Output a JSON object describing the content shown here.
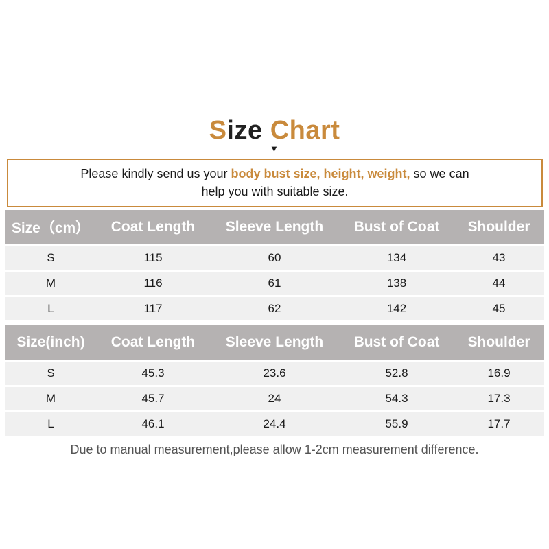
{
  "title": {
    "first_letter": "S",
    "rest_of_word": "ize",
    "second_word": "Chart"
  },
  "arrow_glyph": "▼",
  "notice": {
    "prefix": "Please kindly send us your ",
    "highlight": "body bust size, height, weight,",
    "suffix_line1": " so we can",
    "line2": "help you with suitable size."
  },
  "table_cm": {
    "headers": [
      "Size（cm）",
      "Coat Length",
      "Sleeve Length",
      "Bust of Coat",
      "Shoulder"
    ],
    "rows": [
      [
        "S",
        "115",
        "60",
        "134",
        "43"
      ],
      [
        "M",
        "116",
        "61",
        "138",
        "44"
      ],
      [
        "L",
        "117",
        "62",
        "142",
        "45"
      ]
    ]
  },
  "table_inch": {
    "headers": [
      "Size(inch)",
      "Coat Length",
      "Sleeve Length",
      "Bust of Coat",
      "Shoulder"
    ],
    "rows": [
      [
        "S",
        "45.3",
        "23.6",
        "52.8",
        "16.9"
      ],
      [
        "M",
        "45.7",
        "24",
        "54.3",
        "17.3"
      ],
      [
        "L",
        "46.1",
        "24.4",
        "55.9",
        "17.7"
      ]
    ]
  },
  "footnote": "Due to manual measurement,please allow 1-2cm measurement difference.",
  "colors": {
    "accent": "#c98a3c",
    "header_bg": "#b5b2b2",
    "row_bg": "#f0f0f0"
  }
}
